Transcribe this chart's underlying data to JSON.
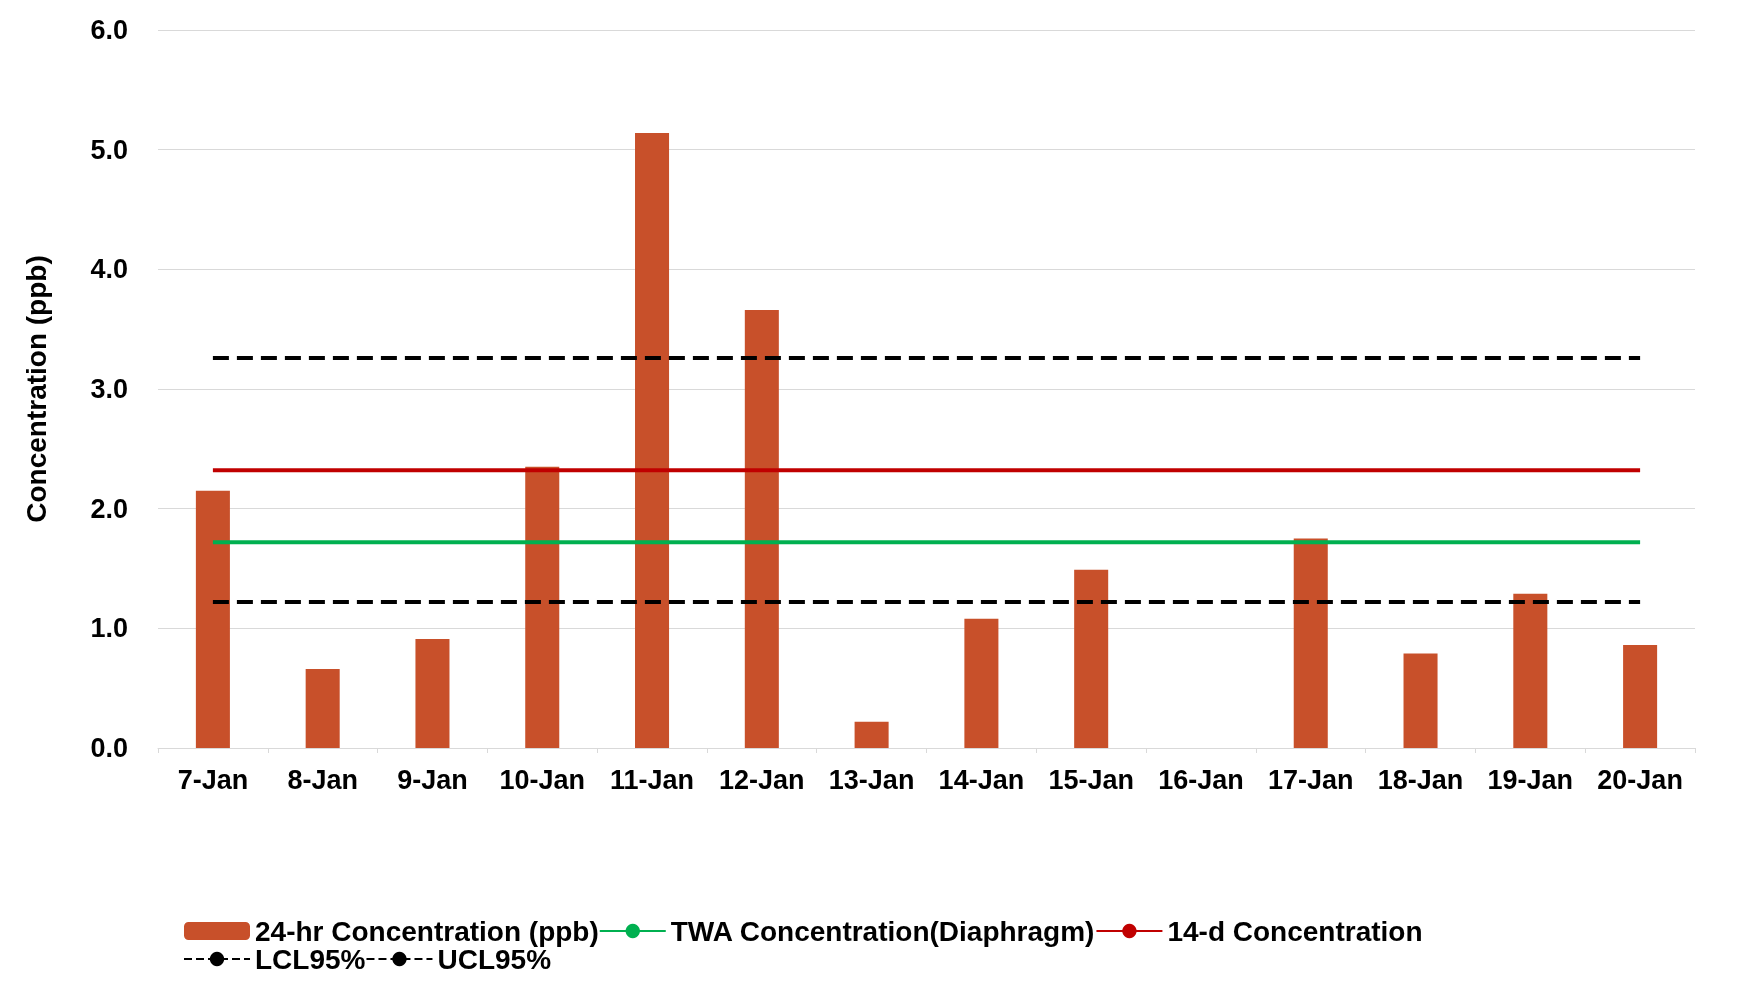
{
  "chart_data": {
    "type": "bar",
    "ylabel": "Concentration (ppb)",
    "categories": [
      "7-Jan",
      "8-Jan",
      "9-Jan",
      "10-Jan",
      "11-Jan",
      "12-Jan",
      "13-Jan",
      "14-Jan",
      "15-Jan",
      "16-Jan",
      "17-Jan",
      "18-Jan",
      "19-Jan",
      "20-Jan"
    ],
    "series": [
      {
        "name": "24-hr Concentration (ppb)",
        "color": "#c8502a",
        "values": [
          2.15,
          0.66,
          0.91,
          2.35,
          5.14,
          3.66,
          0.22,
          1.08,
          1.49,
          null,
          1.75,
          0.79,
          1.29,
          0.86
        ]
      },
      {
        "name": "TWA Concentration(Diaphragm)",
        "type": "line",
        "color": "#00b050",
        "line_style": "solid",
        "values": [
          1.72,
          1.72,
          1.72,
          1.72,
          1.72,
          1.72,
          1.72,
          1.72,
          1.72,
          1.72,
          1.72,
          1.72,
          1.72,
          1.72
        ]
      },
      {
        "name": "14-d Concentration",
        "type": "line",
        "color": "#c00000",
        "line_style": "solid",
        "values": [
          2.32,
          2.32,
          2.32,
          2.32,
          2.32,
          2.32,
          2.32,
          2.32,
          2.32,
          2.32,
          2.32,
          2.32,
          2.32,
          2.32
        ]
      },
      {
        "name": "LCL95%",
        "type": "line",
        "color": "#000000",
        "line_style": "dashed",
        "values": [
          1.22,
          1.22,
          1.22,
          1.22,
          1.22,
          1.22,
          1.22,
          1.22,
          1.22,
          1.22,
          1.22,
          1.22,
          1.22,
          1.22
        ]
      },
      {
        "name": "UCL95%",
        "type": "line",
        "color": "#000000",
        "line_style": "dashed",
        "values": [
          3.26,
          3.26,
          3.26,
          3.26,
          3.26,
          3.26,
          3.26,
          3.26,
          3.26,
          3.26,
          3.26,
          3.26,
          3.26,
          3.26
        ]
      }
    ],
    "ylim": [
      0,
      6
    ],
    "yticks": [
      {
        "value": 0,
        "label": "0.0"
      },
      {
        "value": 1,
        "label": "1.0"
      },
      {
        "value": 2,
        "label": "2.0"
      },
      {
        "value": 3,
        "label": "3.0"
      },
      {
        "value": 4,
        "label": "4.0"
      },
      {
        "value": 5,
        "label": "5.0"
      },
      {
        "value": 6,
        "label": "6.0"
      }
    ],
    "grid": "y",
    "legend": "bottom",
    "marker": "none"
  }
}
